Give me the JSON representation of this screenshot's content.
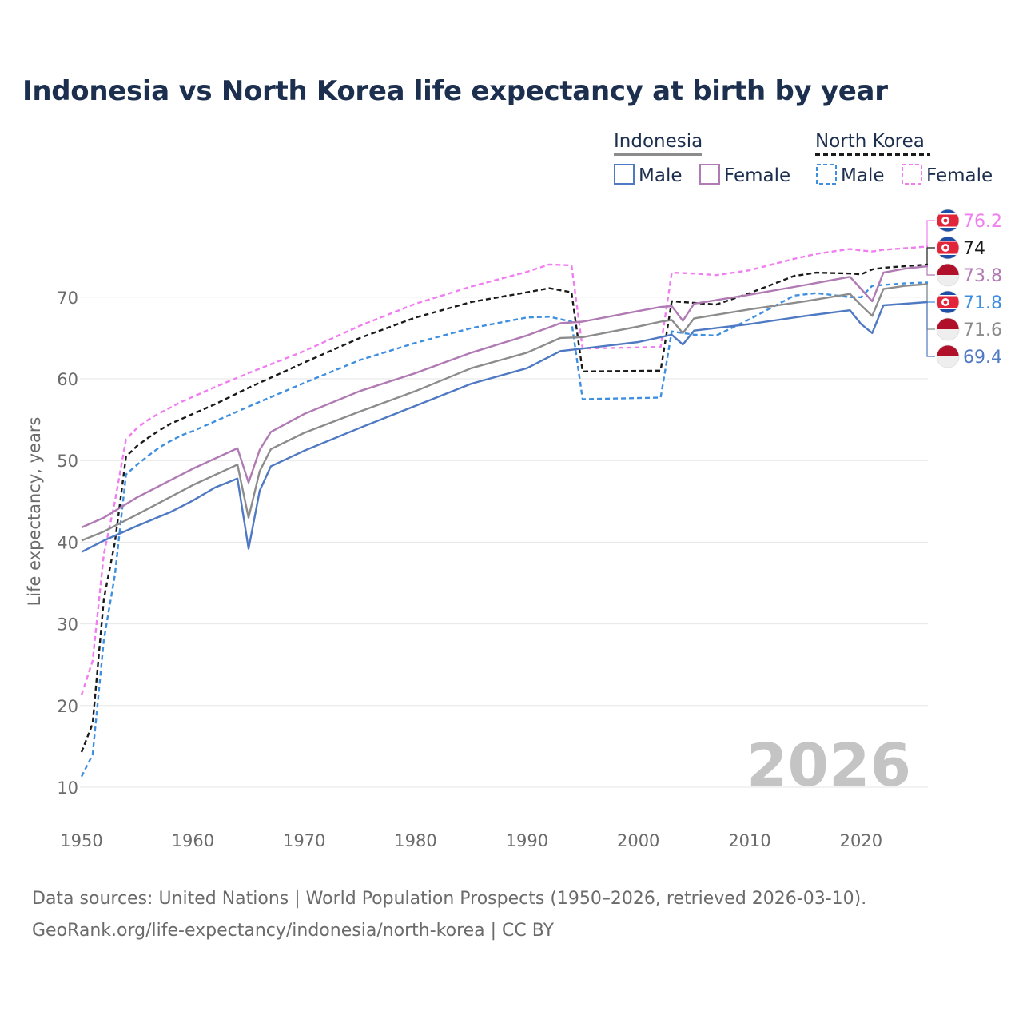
{
  "title": "Indonesia vs North Korea life expectancy at birth by year",
  "source": {
    "line1": "Data sources: United Nations | World Population Prospects (1950–2026, retrieved 2026-03-10).",
    "line2": "GeoRank.org/life-expectancy/indonesia/north-korea | CC BY"
  },
  "legend": {
    "groups": [
      {
        "name": "Indonesia",
        "male": "Male",
        "female": "Female"
      },
      {
        "name": "North Korea",
        "male": "Male",
        "female": "Female"
      }
    ]
  },
  "watermark": "2026",
  "colors": {
    "indonesia_both": "#8c8c8c",
    "indonesia_male": "#4f79c2",
    "indonesia_female": "#b07ab3",
    "nk_both": "#1a1a1a",
    "nk_male": "#3f8fe0",
    "nk_female": "#f07ef0",
    "title": "#1c2f4f",
    "grid": "#e6e6e6"
  },
  "chart_data": {
    "type": "line",
    "title": "Indonesia vs North Korea life expectancy at birth by year",
    "xlabel": "",
    "ylabel": "Life expectancy, years",
    "xlim": [
      1950,
      2026
    ],
    "ylim": [
      10,
      76
    ],
    "x_ticks": [
      1950,
      1960,
      1970,
      1980,
      1990,
      2000,
      2010,
      2020
    ],
    "y_ticks": [
      10,
      20,
      30,
      40,
      50,
      60,
      70
    ],
    "grid": true,
    "legend_position": "top-right",
    "series": [
      {
        "key": "nk_female",
        "name": "North Korea Female",
        "end_label": "76.2",
        "style": "dashed",
        "points": [
          [
            1950,
            21.3
          ],
          [
            1951,
            25.5
          ],
          [
            1952,
            38.5
          ],
          [
            1953,
            45
          ],
          [
            1954,
            52.6
          ],
          [
            1955,
            54
          ],
          [
            1956,
            55
          ],
          [
            1957,
            55.8
          ],
          [
            1958,
            56.5
          ],
          [
            1959,
            57.2
          ],
          [
            1960,
            57.8
          ],
          [
            1962,
            59
          ],
          [
            1965,
            60.7
          ],
          [
            1970,
            63.4
          ],
          [
            1975,
            66.5
          ],
          [
            1980,
            69.2
          ],
          [
            1985,
            71.3
          ],
          [
            1990,
            73.1
          ],
          [
            1992,
            74
          ],
          [
            1994,
            73.9
          ],
          [
            1995,
            63.7
          ],
          [
            2002,
            63.9
          ],
          [
            2003,
            73
          ],
          [
            2005,
            72.9
          ],
          [
            2007,
            72.7
          ],
          [
            2010,
            73.3
          ],
          [
            2014,
            74.7
          ],
          [
            2016,
            75.3
          ],
          [
            2019,
            75.9
          ],
          [
            2020,
            75.7
          ],
          [
            2021,
            75.6
          ],
          [
            2022,
            75.8
          ],
          [
            2024,
            76
          ],
          [
            2026,
            76.2
          ]
        ]
      },
      {
        "key": "nk_both",
        "name": "North Korea",
        "end_label": "74",
        "style": "dashed",
        "points": [
          [
            1950,
            14.3
          ],
          [
            1951,
            17.8
          ],
          [
            1952,
            33
          ],
          [
            1953,
            40
          ],
          [
            1954,
            50.5
          ],
          [
            1955,
            51.8
          ],
          [
            1956,
            52.8
          ],
          [
            1957,
            53.7
          ],
          [
            1958,
            54.5
          ],
          [
            1959,
            55.1
          ],
          [
            1960,
            55.7
          ],
          [
            1962,
            56.9
          ],
          [
            1965,
            58.9
          ],
          [
            1970,
            62
          ],
          [
            1975,
            65
          ],
          [
            1980,
            67.5
          ],
          [
            1985,
            69.4
          ],
          [
            1990,
            70.6
          ],
          [
            1992,
            71.1
          ],
          [
            1994,
            70.6
          ],
          [
            1995,
            60.9
          ],
          [
            2002,
            61
          ],
          [
            2003,
            69.5
          ],
          [
            2005,
            69.3
          ],
          [
            2007,
            69.1
          ],
          [
            2010,
            70.5
          ],
          [
            2014,
            72.6
          ],
          [
            2016,
            73
          ],
          [
            2019,
            72.9
          ],
          [
            2020,
            72.8
          ],
          [
            2021,
            73.4
          ],
          [
            2022,
            73.6
          ],
          [
            2024,
            73.8
          ],
          [
            2026,
            74
          ]
        ]
      },
      {
        "key": "id_female",
        "name": "Indonesia Female",
        "end_label": "73.8",
        "style": "solid",
        "points": [
          [
            1950,
            41.8
          ],
          [
            1952,
            43
          ],
          [
            1955,
            45.5
          ],
          [
            1960,
            49
          ],
          [
            1964,
            51.5
          ],
          [
            1965,
            47.3
          ],
          [
            1966,
            51.3
          ],
          [
            1967,
            53.5
          ],
          [
            1970,
            55.7
          ],
          [
            1975,
            58.5
          ],
          [
            1980,
            60.7
          ],
          [
            1985,
            63.2
          ],
          [
            1990,
            65.3
          ],
          [
            1993,
            66.8
          ],
          [
            1995,
            67
          ],
          [
            2000,
            68.3
          ],
          [
            2002,
            68.8
          ],
          [
            2003,
            68.9
          ],
          [
            2004,
            67.1
          ],
          [
            2005,
            69.2
          ],
          [
            2010,
            70.3
          ],
          [
            2015,
            71.5
          ],
          [
            2019,
            72.5
          ],
          [
            2020,
            71
          ],
          [
            2021,
            69.5
          ],
          [
            2022,
            73
          ],
          [
            2024,
            73.5
          ],
          [
            2026,
            73.8
          ]
        ]
      },
      {
        "key": "nk_male",
        "name": "North Korea Male",
        "end_label": "71.8",
        "style": "dashed",
        "points": [
          [
            1950,
            11.3
          ],
          [
            1951,
            14
          ],
          [
            1952,
            28
          ],
          [
            1953,
            36
          ],
          [
            1954,
            48.3
          ],
          [
            1955,
            49.5
          ],
          [
            1956,
            50.6
          ],
          [
            1957,
            51.6
          ],
          [
            1958,
            52.4
          ],
          [
            1959,
            53.1
          ],
          [
            1960,
            53.6
          ],
          [
            1962,
            54.8
          ],
          [
            1965,
            56.6
          ],
          [
            1970,
            59.5
          ],
          [
            1975,
            62.3
          ],
          [
            1980,
            64.4
          ],
          [
            1985,
            66.2
          ],
          [
            1990,
            67.5
          ],
          [
            1992,
            67.6
          ],
          [
            1994,
            67
          ],
          [
            1995,
            57.5
          ],
          [
            2002,
            57.7
          ],
          [
            2003,
            65.8
          ],
          [
            2005,
            65.4
          ],
          [
            2007,
            65.3
          ],
          [
            2010,
            67.3
          ],
          [
            2014,
            70.2
          ],
          [
            2016,
            70.5
          ],
          [
            2019,
            70
          ],
          [
            2020,
            70
          ],
          [
            2021,
            71.4
          ],
          [
            2022,
            71.5
          ],
          [
            2024,
            71.7
          ],
          [
            2026,
            71.8
          ]
        ]
      },
      {
        "key": "id_both",
        "name": "Indonesia",
        "end_label": "71.6",
        "style": "solid",
        "points": [
          [
            1950,
            40.2
          ],
          [
            1952,
            41.3
          ],
          [
            1955,
            43.4
          ],
          [
            1960,
            47
          ],
          [
            1964,
            49.5
          ],
          [
            1965,
            43
          ],
          [
            1966,
            48.7
          ],
          [
            1967,
            51.4
          ],
          [
            1970,
            53.4
          ],
          [
            1975,
            56
          ],
          [
            1980,
            58.5
          ],
          [
            1985,
            61.3
          ],
          [
            1990,
            63.2
          ],
          [
            1993,
            65
          ],
          [
            1995,
            65.1
          ],
          [
            2000,
            66.4
          ],
          [
            2002,
            67
          ],
          [
            2003,
            67.2
          ],
          [
            2004,
            65.6
          ],
          [
            2005,
            67.4
          ],
          [
            2010,
            68.5
          ],
          [
            2015,
            69.5
          ],
          [
            2019,
            70.4
          ],
          [
            2020,
            69
          ],
          [
            2021,
            67.7
          ],
          [
            2022,
            71
          ],
          [
            2024,
            71.4
          ],
          [
            2026,
            71.6
          ]
        ]
      },
      {
        "key": "id_male",
        "name": "Indonesia Male",
        "end_label": "69.4",
        "style": "solid",
        "points": [
          [
            1950,
            38.8
          ],
          [
            1952,
            40.2
          ],
          [
            1955,
            42
          ],
          [
            1958,
            43.7
          ],
          [
            1960,
            45.1
          ],
          [
            1962,
            46.7
          ],
          [
            1964,
            47.8
          ],
          [
            1965,
            39.2
          ],
          [
            1966,
            46.3
          ],
          [
            1967,
            49.3
          ],
          [
            1970,
            51.2
          ],
          [
            1975,
            54
          ],
          [
            1980,
            56.7
          ],
          [
            1985,
            59.4
          ],
          [
            1990,
            61.3
          ],
          [
            1993,
            63.4
          ],
          [
            1995,
            63.7
          ],
          [
            2000,
            64.5
          ],
          [
            2002,
            65.1
          ],
          [
            2003,
            65.4
          ],
          [
            2004,
            64.2
          ],
          [
            2005,
            65.9
          ],
          [
            2010,
            66.7
          ],
          [
            2015,
            67.7
          ],
          [
            2019,
            68.4
          ],
          [
            2020,
            66.7
          ],
          [
            2021,
            65.6
          ],
          [
            2022,
            69
          ],
          [
            2024,
            69.2
          ],
          [
            2026,
            69.4
          ]
        ]
      }
    ]
  }
}
